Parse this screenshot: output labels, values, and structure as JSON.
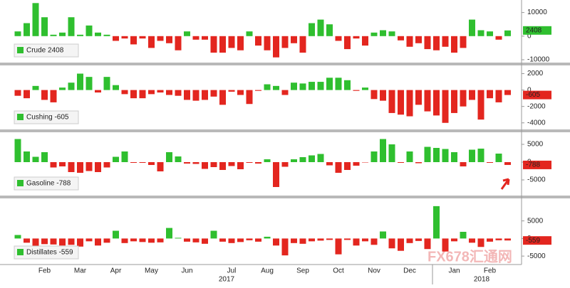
{
  "chart_data": [
    {
      "type": "bar",
      "name": "Crude 2408",
      "positive_color": "#2fbf2f",
      "negative_color": "#e3261f",
      "values": [
        2000,
        5500,
        14000,
        8000,
        600,
        1500,
        8000,
        600,
        4500,
        1500,
        600,
        -2000,
        -1000,
        -3500,
        -1000,
        -5000,
        -2000,
        -3000,
        -6000,
        2000,
        -1500,
        -1500,
        -7000,
        -7000,
        -5000,
        -6000,
        2000,
        -4000,
        -6000,
        -9000,
        -5000,
        -3000,
        -7000,
        5500,
        7000,
        5000,
        -2000,
        -5500,
        -1000,
        -4000,
        1500,
        2500,
        2000,
        -1800,
        -4500,
        -3000,
        -5500,
        -6000,
        -4500,
        -7000,
        -5000,
        7000,
        2500,
        2000,
        -1500,
        2408
      ],
      "ylim": [
        -11200,
        15300
      ],
      "yticks": [
        10000,
        0,
        -10000
      ]
    },
    {
      "type": "bar",
      "name": "Cushing -605",
      "positive_color": "#2fbf2f",
      "negative_color": "#e3261f",
      "values": [
        -700,
        -1000,
        500,
        -1200,
        -1500,
        300,
        900,
        2000,
        1600,
        -300,
        1600,
        600,
        -500,
        -1000,
        -1000,
        -500,
        -300,
        -600,
        -700,
        -1200,
        -1300,
        -1200,
        -800,
        -1800,
        -200,
        -600,
        -1700,
        -100,
        700,
        500,
        -600,
        900,
        800,
        1000,
        1000,
        1500,
        1500,
        1200,
        -100,
        300,
        -1100,
        -1300,
        -2800,
        -3000,
        -3200,
        -1800,
        -2600,
        -3100,
        -4000,
        -2800,
        -2000,
        -1200,
        -3600,
        -1000,
        -1500,
        -605
      ],
      "ylim": [
        -4800,
        3000
      ],
      "yticks": [
        2000,
        0,
        -2000,
        -4000
      ]
    },
    {
      "type": "bar",
      "name": "Gasoline -788",
      "positive_color": "#2fbf2f",
      "negative_color": "#e3261f",
      "values": [
        6500,
        3000,
        1500,
        2800,
        -1500,
        -1200,
        -2800,
        -3000,
        -2500,
        -2800,
        -1500,
        1500,
        3000,
        -200,
        -200,
        -800,
        -2600,
        2800,
        1600,
        -400,
        -500,
        -1900,
        -1400,
        -2200,
        -1100,
        -2000,
        -200,
        -400,
        800,
        -7000,
        -1300,
        800,
        1400,
        1900,
        2300,
        -900,
        -3000,
        -2200,
        -1000,
        -100,
        3000,
        6500,
        5000,
        -200,
        3000,
        -300,
        4300,
        4000,
        3700,
        2800,
        -1200,
        3500,
        3800,
        -200,
        2400,
        -788
      ],
      "ylim": [
        -9400,
        8400
      ],
      "yticks": [
        5000,
        0,
        -5000
      ]
    },
    {
      "type": "bar",
      "name": "Distillates -559",
      "positive_color": "#2fbf2f",
      "negative_color": "#e3261f",
      "values": [
        1000,
        -1200,
        -2800,
        -1600,
        -1700,
        -2000,
        -1800,
        -2300,
        -800,
        -2000,
        -1200,
        2200,
        -1300,
        -800,
        -1000,
        -1200,
        -1100,
        3000,
        200,
        -900,
        -1100,
        -1500,
        2200,
        -900,
        -1300,
        -1000,
        -500,
        -900,
        500,
        -2000,
        -4800,
        -1300,
        -1500,
        -800,
        -600,
        -400,
        -4500,
        -400,
        -2000,
        -800,
        -1800,
        2000,
        -2800,
        -3500,
        -1300,
        -700,
        -3000,
        9200,
        -3700,
        -800,
        1900,
        -1200,
        -2400,
        -900,
        -500,
        -559
      ],
      "ylim": [
        -7400,
        11400
      ],
      "yticks": [
        5000,
        0,
        -5000
      ],
      "categories": [
        null,
        null,
        null,
        "Feb",
        null,
        null,
        null,
        "Mar",
        null,
        null,
        null,
        "Apr",
        null,
        null,
        null,
        "May",
        null,
        null,
        null,
        "Jun",
        null,
        null,
        null,
        null,
        "Jul",
        null,
        null,
        null,
        "Aug",
        null,
        null,
        null,
        "Sep",
        null,
        null,
        null,
        "Oct",
        null,
        null,
        null,
        "Nov",
        null,
        null,
        null,
        "Dec",
        null,
        null,
        null,
        null,
        "Jan",
        null,
        null,
        null,
        "Feb",
        null,
        null
      ],
      "year_labels": [
        "2017",
        "2018"
      ],
      "watermark": "FX678汇通网"
    }
  ]
}
